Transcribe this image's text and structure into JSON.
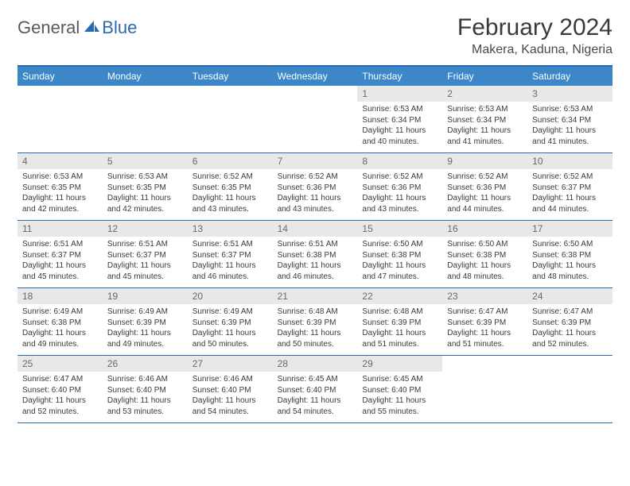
{
  "logo": {
    "part1": "General",
    "part2": "Blue"
  },
  "title": "February 2024",
  "location": "Makera, Kaduna, Nigeria",
  "colors": {
    "header_bg": "#3b87c8",
    "border": "#2a6bb0",
    "daynum_bg": "#e8e8e8",
    "text": "#3a3a3a",
    "logo_gray": "#5a5a5a",
    "logo_blue": "#2a6bb0"
  },
  "day_names": [
    "Sunday",
    "Monday",
    "Tuesday",
    "Wednesday",
    "Thursday",
    "Friday",
    "Saturday"
  ],
  "weeks": [
    [
      {
        "n": "",
        "sr": "",
        "ss": "",
        "dl": ""
      },
      {
        "n": "",
        "sr": "",
        "ss": "",
        "dl": ""
      },
      {
        "n": "",
        "sr": "",
        "ss": "",
        "dl": ""
      },
      {
        "n": "",
        "sr": "",
        "ss": "",
        "dl": ""
      },
      {
        "n": "1",
        "sr": "Sunrise: 6:53 AM",
        "ss": "Sunset: 6:34 PM",
        "dl": "Daylight: 11 hours and 40 minutes."
      },
      {
        "n": "2",
        "sr": "Sunrise: 6:53 AM",
        "ss": "Sunset: 6:34 PM",
        "dl": "Daylight: 11 hours and 41 minutes."
      },
      {
        "n": "3",
        "sr": "Sunrise: 6:53 AM",
        "ss": "Sunset: 6:34 PM",
        "dl": "Daylight: 11 hours and 41 minutes."
      }
    ],
    [
      {
        "n": "4",
        "sr": "Sunrise: 6:53 AM",
        "ss": "Sunset: 6:35 PM",
        "dl": "Daylight: 11 hours and 42 minutes."
      },
      {
        "n": "5",
        "sr": "Sunrise: 6:53 AM",
        "ss": "Sunset: 6:35 PM",
        "dl": "Daylight: 11 hours and 42 minutes."
      },
      {
        "n": "6",
        "sr": "Sunrise: 6:52 AM",
        "ss": "Sunset: 6:35 PM",
        "dl": "Daylight: 11 hours and 43 minutes."
      },
      {
        "n": "7",
        "sr": "Sunrise: 6:52 AM",
        "ss": "Sunset: 6:36 PM",
        "dl": "Daylight: 11 hours and 43 minutes."
      },
      {
        "n": "8",
        "sr": "Sunrise: 6:52 AM",
        "ss": "Sunset: 6:36 PM",
        "dl": "Daylight: 11 hours and 43 minutes."
      },
      {
        "n": "9",
        "sr": "Sunrise: 6:52 AM",
        "ss": "Sunset: 6:36 PM",
        "dl": "Daylight: 11 hours and 44 minutes."
      },
      {
        "n": "10",
        "sr": "Sunrise: 6:52 AM",
        "ss": "Sunset: 6:37 PM",
        "dl": "Daylight: 11 hours and 44 minutes."
      }
    ],
    [
      {
        "n": "11",
        "sr": "Sunrise: 6:51 AM",
        "ss": "Sunset: 6:37 PM",
        "dl": "Daylight: 11 hours and 45 minutes."
      },
      {
        "n": "12",
        "sr": "Sunrise: 6:51 AM",
        "ss": "Sunset: 6:37 PM",
        "dl": "Daylight: 11 hours and 45 minutes."
      },
      {
        "n": "13",
        "sr": "Sunrise: 6:51 AM",
        "ss": "Sunset: 6:37 PM",
        "dl": "Daylight: 11 hours and 46 minutes."
      },
      {
        "n": "14",
        "sr": "Sunrise: 6:51 AM",
        "ss": "Sunset: 6:38 PM",
        "dl": "Daylight: 11 hours and 46 minutes."
      },
      {
        "n": "15",
        "sr": "Sunrise: 6:50 AM",
        "ss": "Sunset: 6:38 PM",
        "dl": "Daylight: 11 hours and 47 minutes."
      },
      {
        "n": "16",
        "sr": "Sunrise: 6:50 AM",
        "ss": "Sunset: 6:38 PM",
        "dl": "Daylight: 11 hours and 48 minutes."
      },
      {
        "n": "17",
        "sr": "Sunrise: 6:50 AM",
        "ss": "Sunset: 6:38 PM",
        "dl": "Daylight: 11 hours and 48 minutes."
      }
    ],
    [
      {
        "n": "18",
        "sr": "Sunrise: 6:49 AM",
        "ss": "Sunset: 6:38 PM",
        "dl": "Daylight: 11 hours and 49 minutes."
      },
      {
        "n": "19",
        "sr": "Sunrise: 6:49 AM",
        "ss": "Sunset: 6:39 PM",
        "dl": "Daylight: 11 hours and 49 minutes."
      },
      {
        "n": "20",
        "sr": "Sunrise: 6:49 AM",
        "ss": "Sunset: 6:39 PM",
        "dl": "Daylight: 11 hours and 50 minutes."
      },
      {
        "n": "21",
        "sr": "Sunrise: 6:48 AM",
        "ss": "Sunset: 6:39 PM",
        "dl": "Daylight: 11 hours and 50 minutes."
      },
      {
        "n": "22",
        "sr": "Sunrise: 6:48 AM",
        "ss": "Sunset: 6:39 PM",
        "dl": "Daylight: 11 hours and 51 minutes."
      },
      {
        "n": "23",
        "sr": "Sunrise: 6:47 AM",
        "ss": "Sunset: 6:39 PM",
        "dl": "Daylight: 11 hours and 51 minutes."
      },
      {
        "n": "24",
        "sr": "Sunrise: 6:47 AM",
        "ss": "Sunset: 6:39 PM",
        "dl": "Daylight: 11 hours and 52 minutes."
      }
    ],
    [
      {
        "n": "25",
        "sr": "Sunrise: 6:47 AM",
        "ss": "Sunset: 6:40 PM",
        "dl": "Daylight: 11 hours and 52 minutes."
      },
      {
        "n": "26",
        "sr": "Sunrise: 6:46 AM",
        "ss": "Sunset: 6:40 PM",
        "dl": "Daylight: 11 hours and 53 minutes."
      },
      {
        "n": "27",
        "sr": "Sunrise: 6:46 AM",
        "ss": "Sunset: 6:40 PM",
        "dl": "Daylight: 11 hours and 54 minutes."
      },
      {
        "n": "28",
        "sr": "Sunrise: 6:45 AM",
        "ss": "Sunset: 6:40 PM",
        "dl": "Daylight: 11 hours and 54 minutes."
      },
      {
        "n": "29",
        "sr": "Sunrise: 6:45 AM",
        "ss": "Sunset: 6:40 PM",
        "dl": "Daylight: 11 hours and 55 minutes."
      },
      {
        "n": "",
        "sr": "",
        "ss": "",
        "dl": ""
      },
      {
        "n": "",
        "sr": "",
        "ss": "",
        "dl": ""
      }
    ]
  ]
}
